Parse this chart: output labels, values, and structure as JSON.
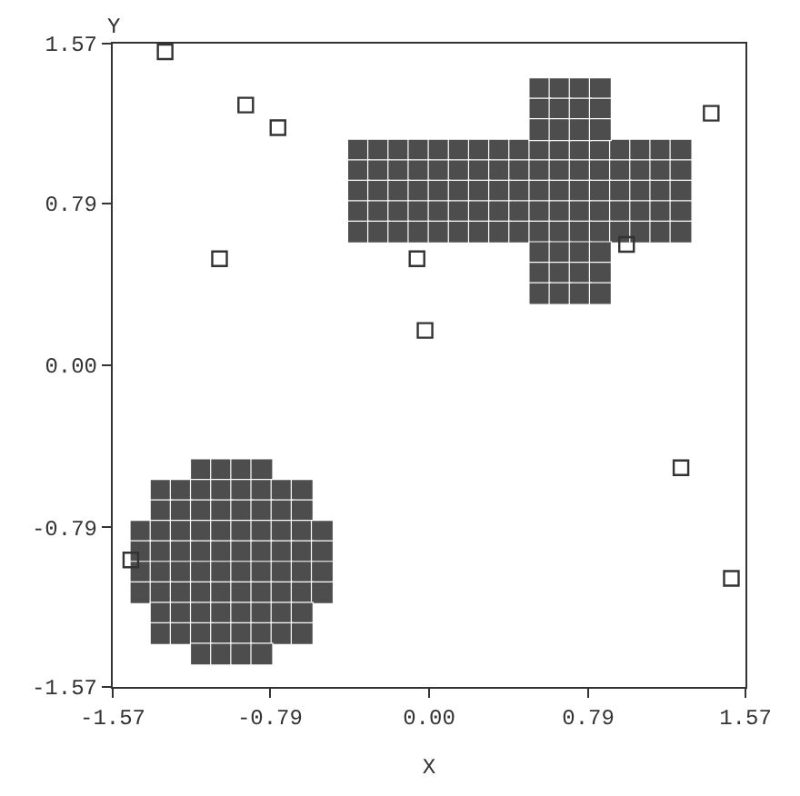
{
  "chart_data": {
    "type": "scatter",
    "xlabel": "X",
    "ylabel": "Y",
    "xlim": [
      -1.57,
      1.57
    ],
    "ylim": [
      -1.57,
      1.57
    ],
    "xticks": [
      -1.57,
      -0.79,
      {
        "value": 0,
        "label": "0.00"
      },
      0.79,
      1.57
    ],
    "yticks": [
      -1.57,
      -0.79,
      {
        "value": 0,
        "label": "0.00"
      },
      0.79,
      1.57
    ],
    "marker": "square",
    "series": [
      {
        "color": "#333333",
        "x": [
          -1.31,
          -0.91,
          -0.75,
          -1.04,
          -0.06,
          -0.02,
          0.98,
          1.4,
          1.25,
          1.5,
          -1.48
        ],
        "values": [
          1.53,
          1.27,
          1.16,
          0.52,
          0.52,
          0.17,
          0.59,
          1.23,
          -0.5,
          -1.04,
          -0.95
        ]
      },
      {
        "color": "#4d4d4d",
        "x": [
          -0.35,
          -0.25,
          -0.15,
          -0.05,
          0.05,
          0.15,
          0.25,
          0.35,
          0.45,
          0.55,
          0.65,
          0.75,
          0.85,
          0.95,
          1.05,
          1.15,
          1.25,
          -0.35,
          -0.25,
          -0.15,
          -0.05,
          0.05,
          0.15,
          0.25,
          0.35,
          0.45,
          0.55,
          0.65,
          0.75,
          0.85,
          0.95,
          1.05,
          1.15,
          1.25,
          -0.35,
          -0.25,
          -0.15,
          -0.05,
          0.05,
          0.15,
          0.25,
          0.35,
          0.45,
          0.55,
          0.65,
          0.75,
          0.85,
          0.95,
          1.05,
          1.15,
          1.25,
          -0.35,
          -0.25,
          -0.15,
          -0.05,
          0.05,
          0.15,
          0.25,
          0.35,
          0.45,
          0.55,
          0.65,
          0.75,
          0.85,
          0.95,
          1.05,
          1.15,
          1.25,
          -0.35,
          -0.25,
          -0.15,
          -0.05,
          0.05,
          0.15,
          0.25,
          0.35,
          0.45,
          0.55,
          0.65,
          0.75,
          0.85,
          0.95,
          1.05,
          1.15,
          1.25,
          0.55,
          0.65,
          0.75,
          0.85,
          0.55,
          0.65,
          0.75,
          0.85,
          0.55,
          0.65,
          0.75,
          0.85,
          0.55,
          0.65,
          0.75,
          0.85,
          0.55,
          0.65,
          0.75,
          0.85,
          0.55,
          0.65,
          0.75,
          0.85
        ],
        "values": [
          1.05,
          1.05,
          1.05,
          1.05,
          1.05,
          1.05,
          1.05,
          1.05,
          1.05,
          1.05,
          1.05,
          1.05,
          1.05,
          1.05,
          1.05,
          1.05,
          1.05,
          0.95,
          0.95,
          0.95,
          0.95,
          0.95,
          0.95,
          0.95,
          0.95,
          0.95,
          0.95,
          0.95,
          0.95,
          0.95,
          0.95,
          0.95,
          0.95,
          0.95,
          0.85,
          0.85,
          0.85,
          0.85,
          0.85,
          0.85,
          0.85,
          0.85,
          0.85,
          0.85,
          0.85,
          0.85,
          0.85,
          0.85,
          0.85,
          0.85,
          0.85,
          0.75,
          0.75,
          0.75,
          0.75,
          0.75,
          0.75,
          0.75,
          0.75,
          0.75,
          0.75,
          0.75,
          0.75,
          0.75,
          0.75,
          0.75,
          0.75,
          0.75,
          0.65,
          0.65,
          0.65,
          0.65,
          0.65,
          0.65,
          0.65,
          0.65,
          0.65,
          0.65,
          0.65,
          0.65,
          0.65,
          0.65,
          0.65,
          0.65,
          0.65,
          1.35,
          1.35,
          1.35,
          1.35,
          1.25,
          1.25,
          1.25,
          1.25,
          1.15,
          1.15,
          1.15,
          1.15,
          0.55,
          0.55,
          0.55,
          0.55,
          0.45,
          0.45,
          0.45,
          0.45,
          0.35,
          0.35,
          0.35,
          0.35
        ]
      },
      {
        "color": "#4d4d4d",
        "x": [
          -1.13,
          -1.03,
          -0.93,
          -0.83,
          -1.33,
          -1.23,
          -1.13,
          -1.03,
          -0.93,
          -0.83,
          -0.73,
          -0.63,
          -1.33,
          -1.23,
          -1.13,
          -1.03,
          -0.93,
          -0.83,
          -0.73,
          -0.63,
          -1.43,
          -1.33,
          -1.23,
          -1.13,
          -1.03,
          -0.93,
          -0.83,
          -0.73,
          -0.63,
          -0.53,
          -1.43,
          -1.33,
          -1.23,
          -1.13,
          -1.03,
          -0.93,
          -0.83,
          -0.73,
          -0.63,
          -0.53,
          -1.43,
          -1.33,
          -1.23,
          -1.13,
          -1.03,
          -0.93,
          -0.83,
          -0.73,
          -0.63,
          -0.53,
          -1.43,
          -1.33,
          -1.23,
          -1.13,
          -1.03,
          -0.93,
          -0.83,
          -0.73,
          -0.63,
          -0.53,
          -1.33,
          -1.23,
          -1.13,
          -1.03,
          -0.93,
          -0.83,
          -0.73,
          -0.63,
          -1.33,
          -1.23,
          -1.13,
          -1.03,
          -0.93,
          -0.83,
          -0.73,
          -0.63,
          -1.13,
          -1.03,
          -0.93,
          -0.83
        ],
        "values": [
          -0.51,
          -0.51,
          -0.51,
          -0.51,
          -0.61,
          -0.61,
          -0.61,
          -0.61,
          -0.61,
          -0.61,
          -0.61,
          -0.61,
          -0.71,
          -0.71,
          -0.71,
          -0.71,
          -0.71,
          -0.71,
          -0.71,
          -0.71,
          -0.81,
          -0.81,
          -0.81,
          -0.81,
          -0.81,
          -0.81,
          -0.81,
          -0.81,
          -0.81,
          -0.81,
          -0.91,
          -0.91,
          -0.91,
          -0.91,
          -0.91,
          -0.91,
          -0.91,
          -0.91,
          -0.91,
          -0.91,
          -1.01,
          -1.01,
          -1.01,
          -1.01,
          -1.01,
          -1.01,
          -1.01,
          -1.01,
          -1.01,
          -1.01,
          -1.11,
          -1.11,
          -1.11,
          -1.11,
          -1.11,
          -1.11,
          -1.11,
          -1.11,
          -1.11,
          -1.11,
          -1.21,
          -1.21,
          -1.21,
          -1.21,
          -1.21,
          -1.21,
          -1.21,
          -1.21,
          -1.31,
          -1.31,
          -1.31,
          -1.31,
          -1.31,
          -1.31,
          -1.31,
          -1.31,
          -1.41,
          -1.41,
          -1.41,
          -1.41
        ]
      }
    ]
  }
}
